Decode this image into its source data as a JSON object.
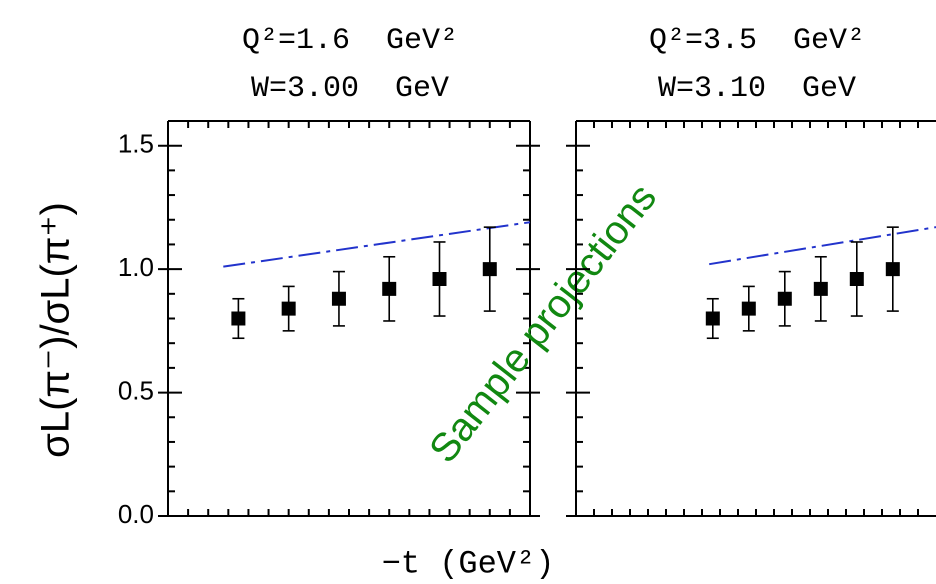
{
  "chart_data": [
    {
      "type": "errorbar",
      "title": [
        "Q²=1.6  GeV²",
        "W=3.00  GeV"
      ],
      "ylabel": "σL(π⁻)/σL(π⁺)",
      "xlabel": "−t (GeV²)",
      "annotation": "Sample projections",
      "xlim": [
        0,
        0.36
      ],
      "xticks": [
        0,
        0.02,
        0.04,
        0.06,
        0.08,
        0.1,
        0.12,
        0.14,
        0.16,
        0.18,
        0.2,
        0.22,
        0.24,
        0.26,
        0.28,
        0.3,
        0.32,
        0.34,
        0.36
      ],
      "ylim": [
        0,
        1.6
      ],
      "yticks": [
        {
          "value": 0,
          "label": "0.0"
        },
        0.5,
        {
          "value": 1,
          "label": "1.0"
        },
        1.5
      ],
      "y_minor_ticks": [
        0.1,
        0.2,
        0.3,
        0.4,
        0.6,
        0.7,
        0.8,
        0.9,
        1.1,
        1.2,
        1.3,
        1.4
      ],
      "ytick_labels": true,
      "points": {
        "color": "#000000",
        "x": [
          0.07,
          0.12,
          0.17,
          0.22,
          0.27,
          0.32
        ],
        "values": [
          0.8,
          0.84,
          0.88,
          0.92,
          0.96,
          1.0
        ],
        "errors": [
          0.08,
          0.09,
          0.11,
          0.13,
          0.15,
          0.17
        ]
      },
      "model": {
        "color": "#2233cc",
        "x": [
          0.055,
          0.36
        ],
        "values": [
          1.01,
          1.19
        ]
      }
    },
    {
      "type": "errorbar",
      "title": [
        "Q²=3.5  GeV²",
        "W=3.10  GeV"
      ],
      "xlim": [
        0,
        0.5
      ],
      "xticks": [
        0,
        0.025,
        0.05,
        0.075,
        0.1,
        0.125,
        0.15,
        0.175,
        0.2,
        0.225,
        0.25,
        0.275,
        0.3,
        0.325,
        0.35,
        0.375,
        0.4,
        0.425,
        0.45,
        0.475
      ],
      "ylim": [
        0,
        1.6
      ],
      "yticks": [
        0,
        0.5,
        1,
        1.5
      ],
      "y_minor_ticks": [
        0.1,
        0.2,
        0.3,
        0.4,
        0.6,
        0.7,
        0.8,
        0.9,
        1.1,
        1.2,
        1.3,
        1.4
      ],
      "ytick_labels": false,
      "points": {
        "color": "#000000",
        "x": [
          0.19,
          0.24,
          0.29,
          0.34,
          0.39,
          0.44
        ],
        "values": [
          0.8,
          0.84,
          0.88,
          0.92,
          0.96,
          1.0
        ],
        "errors": [
          0.08,
          0.09,
          0.11,
          0.13,
          0.15,
          0.17
        ]
      },
      "model": {
        "color": "#2233cc",
        "x": [
          0.185,
          0.5
        ],
        "values": [
          1.02,
          1.17
        ]
      }
    }
  ]
}
